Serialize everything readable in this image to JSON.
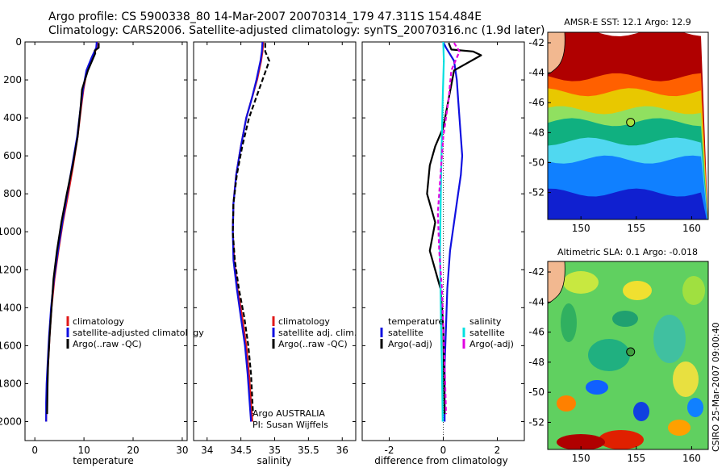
{
  "header": {
    "line1": "Argo profile: CS 5900338_80 14-Mar-2007 20070314_179 47.311S 154.484E",
    "line2": "Climatology: CARS2006. Satellite-adjusted climatology: synTS_20070316.nc (1.9d later)"
  },
  "chart_data": [
    {
      "type": "line",
      "xlabel": "temperature",
      "ylim": [
        2100,
        0
      ],
      "xlim": [
        -2,
        31
      ],
      "yticks": [
        0,
        200,
        400,
        600,
        800,
        1000,
        1200,
        1400,
        1600,
        1800,
        2000
      ],
      "xticks": [
        0,
        10,
        20,
        30
      ],
      "legend": [
        "climatology",
        "satellite-adjusted climatology",
        "Argo(..raw -QC)"
      ],
      "series": [
        {
          "name": "climatology",
          "color": "#e01818",
          "x": [
            12.7,
            12.6,
            11.8,
            10.6,
            9.9,
            9.4,
            8.7,
            7.8,
            6.8,
            5.7,
            4.8,
            4.0,
            3.4,
            3.0,
            2.7,
            2.5,
            2.4,
            2.3
          ],
          "y": [
            0,
            30,
            80,
            150,
            250,
            350,
            500,
            650,
            800,
            950,
            1100,
            1250,
            1400,
            1550,
            1700,
            1800,
            1900,
            2000
          ]
        },
        {
          "name": "satellite-adjusted climatology",
          "color": "#1010e0",
          "x": [
            12.6,
            12.5,
            11.6,
            10.5,
            9.8,
            9.3,
            8.6,
            7.6,
            6.6,
            5.6,
            4.7,
            3.9,
            3.3,
            2.9,
            2.6,
            2.4,
            2.3,
            2.3
          ],
          "y": [
            0,
            30,
            80,
            150,
            250,
            350,
            500,
            650,
            800,
            950,
            1100,
            1250,
            1400,
            1550,
            1700,
            1800,
            1900,
            2000
          ]
        },
        {
          "name": "Argo(..raw -QC)",
          "color": "#000000",
          "x": [
            13.0,
            13.0,
            12.2,
            12.3,
            10.8,
            9.6,
            9.3,
            8.7,
            7.7,
            6.5,
            5.4,
            4.5,
            3.8,
            3.4,
            3.0,
            2.7,
            2.6,
            2.5
          ],
          "y": [
            5,
            30,
            45,
            60,
            150,
            250,
            350,
            500,
            650,
            800,
            950,
            1100,
            1250,
            1400,
            1550,
            1700,
            1800,
            1960
          ]
        }
      ]
    },
    {
      "type": "line",
      "xlabel": "salinity",
      "ylim": [
        2100,
        0
      ],
      "xlim": [
        33.8,
        36.2
      ],
      "xticks": [
        34,
        34.5,
        35,
        35.5,
        36
      ],
      "legend": [
        "climatology",
        "satellite adj. clim.",
        "Argo(..raw -QC)"
      ],
      "annotation": [
        "Argo AUSTRALIA",
        "PI: Susan Wijffels"
      ],
      "series": [
        {
          "name": "climatology",
          "color": "#e01818",
          "x": [
            34.83,
            34.82,
            34.8,
            34.74,
            34.66,
            34.58,
            34.5,
            34.43,
            34.39,
            34.38,
            34.4,
            34.45,
            34.52,
            34.58,
            34.62,
            34.65,
            34.67
          ],
          "y": [
            0,
            50,
            100,
            200,
            300,
            400,
            550,
            700,
            850,
            1000,
            1150,
            1300,
            1450,
            1600,
            1750,
            1900,
            2000
          ]
        },
        {
          "name": "satellite adj. clim.",
          "color": "#1010e0",
          "x": [
            34.82,
            34.81,
            34.79,
            34.73,
            34.66,
            34.58,
            34.5,
            34.43,
            34.39,
            34.38,
            34.39,
            34.44,
            34.5,
            34.56,
            34.6,
            34.63,
            34.65
          ],
          "y": [
            0,
            50,
            100,
            200,
            300,
            400,
            550,
            700,
            850,
            1000,
            1150,
            1300,
            1450,
            1600,
            1750,
            1900,
            2000
          ]
        },
        {
          "name": "Argo(..raw -QC)",
          "color": "#000000",
          "x": [
            34.86,
            34.86,
            34.92,
            34.82,
            34.72,
            34.62,
            34.52,
            34.44,
            34.39,
            34.38,
            34.41,
            34.47,
            34.55,
            34.61,
            34.65,
            34.68
          ],
          "y": [
            5,
            50,
            100,
            200,
            300,
            400,
            550,
            700,
            850,
            1000,
            1150,
            1300,
            1450,
            1600,
            1750,
            1960
          ]
        }
      ]
    },
    {
      "type": "line",
      "xlabel": "difference from climatology",
      "ylim": [
        2100,
        0
      ],
      "xlim": [
        -3,
        3
      ],
      "xticks": [
        -2,
        0,
        2
      ],
      "legend": {
        "temperature_heading": "temperature",
        "salinity_heading": "salinity",
        "entries": [
          "satellite",
          "Argo(-adj)",
          "satellite",
          "Argo(-adj)"
        ]
      },
      "series": [
        {
          "name": "temperature satellite",
          "color": "#1010e0",
          "x": [
            0.0,
            0.1,
            0.4,
            0.5,
            0.55,
            0.6,
            0.65,
            0.7,
            0.65,
            0.55,
            0.4,
            0.25,
            0.15,
            0.1,
            0.05,
            0.05
          ],
          "y": [
            0,
            30,
            100,
            200,
            300,
            400,
            500,
            600,
            700,
            800,
            950,
            1100,
            1300,
            1500,
            1700,
            2000
          ]
        },
        {
          "name": "temperature Argo(-adj)",
          "color": "#000000",
          "x": [
            0.2,
            0.3,
            1.1,
            1.4,
            0.4,
            0.2,
            0.0,
            -0.3,
            -0.5,
            -0.6,
            -0.3,
            -0.5,
            -0.1,
            0.0,
            0.05
          ],
          "y": [
            5,
            40,
            50,
            70,
            150,
            300,
            450,
            550,
            650,
            800,
            950,
            1100,
            1300,
            1500,
            1960
          ]
        },
        {
          "name": "salinity satellite",
          "color": "#00e0e0",
          "x": [
            0.0,
            0.02,
            -0.02,
            -0.05,
            -0.08,
            -0.1,
            -0.12,
            -0.1,
            -0.08,
            -0.05,
            -0.03,
            -0.02
          ],
          "y": [
            0,
            100,
            300,
            500,
            700,
            900,
            1100,
            1300,
            1500,
            1700,
            1900,
            2000
          ]
        },
        {
          "name": "salinity Argo(-adj)",
          "color": "#e000e0",
          "x": [
            0.4,
            0.6,
            0.3,
            0.2,
            0.0,
            -0.1,
            -0.2,
            -0.15,
            -0.05,
            0.0,
            0.05,
            0.1
          ],
          "y": [
            5,
            50,
            150,
            300,
            500,
            700,
            900,
            1100,
            1300,
            1500,
            1700,
            1960
          ]
        }
      ]
    },
    {
      "type": "heatmap",
      "title": "AMSR-E SST: 12.1 Argo: 12.9",
      "xlim": [
        147,
        161.5
      ],
      "ylim": [
        -53.8,
        -41.3
      ],
      "xticks": [
        150,
        155,
        160
      ],
      "yticks": [
        -42,
        -44,
        -46,
        -48,
        -50,
        -52
      ],
      "marker": {
        "lon": 154.484,
        "lat": -47.311
      },
      "bands": [
        {
          "lat_top": -41.3,
          "lat_bottom": -44.3,
          "color": "#b00000"
        },
        {
          "lat_top": -44.3,
          "lat_bottom": -45.3,
          "color": "#ff6000"
        },
        {
          "lat_top": -45.3,
          "lat_bottom": -46.5,
          "color": "#e8c800"
        },
        {
          "lat_top": -46.5,
          "lat_bottom": -47.3,
          "color": "#90e060"
        },
        {
          "lat_top": -47.3,
          "lat_bottom": -48.6,
          "color": "#10b080"
        },
        {
          "lat_top": -48.6,
          "lat_bottom": -49.8,
          "color": "#50d8f0"
        },
        {
          "lat_top": -49.8,
          "lat_bottom": -52.0,
          "color": "#1080ff"
        },
        {
          "lat_top": -52.0,
          "lat_bottom": -53.8,
          "color": "#1020d0"
        }
      ]
    },
    {
      "type": "heatmap",
      "title": "Altimetric SLA: 0.1 Argo: -0.018",
      "side_label": "CSIRO 25-Mar-2007 09:00:40",
      "xlim": [
        147,
        161.5
      ],
      "ylim": [
        -53.8,
        -41.3
      ],
      "xticks": [
        150,
        155,
        160
      ],
      "yticks": [
        -42,
        -44,
        -46,
        -48,
        -50,
        -52
      ],
      "marker": {
        "lon": 154.484,
        "lat": -47.311
      },
      "background": "#60d060"
    }
  ]
}
